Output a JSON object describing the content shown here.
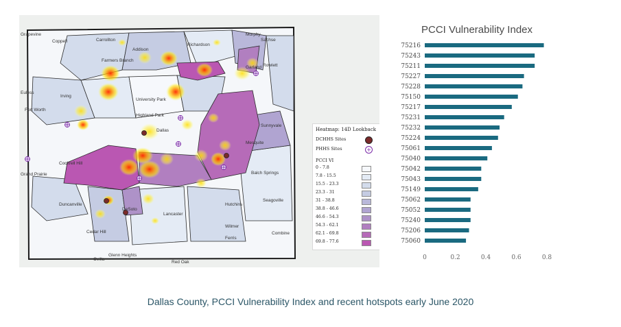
{
  "map": {
    "places": [
      "Grapevine",
      "Coppell",
      "Carrollton",
      "Addison",
      "Richardson",
      "Murphy",
      "Sachse",
      "Farmers Branch",
      "Rowlett",
      "Garland",
      "Euless",
      "Irving",
      "University Park",
      "Sunnyvale",
      "Fort Worth",
      "Highland Park",
      "Dallas",
      "Mesquite",
      "Cockrell Hill",
      "Balch Springs",
      "Grand Prairie",
      "Seagoville",
      "Duncanville",
      "Hutchins",
      "DeSoto",
      "Lancaster",
      "Wilmer",
      "Ferris",
      "Cedar Hill",
      "Glenn Heights",
      "Ovilla",
      "Red Oak",
      "Combine"
    ],
    "legend": {
      "title": "Heatmap: 14D Lookback",
      "site1": "DCHHS Sites",
      "site2": "PHHS Sites",
      "vi_title": "PCCI VI",
      "classes": [
        "0 - 7.8",
        "7.8 - 15.5",
        "15.5 - 23.3",
        "23.3 - 31",
        "31 - 38.8",
        "38.8 - 46.6",
        "46.6 - 54.3",
        "54.3 - 62.1",
        "62.1 - 69.8",
        "69.8 - 77.6"
      ],
      "class_colors": [
        "#f6f8fc",
        "#e4ebf5",
        "#d3dcec",
        "#c5cce3",
        "#b9b8da",
        "#b0a4d1",
        "#ae92c8",
        "#b17fc0",
        "#b66bb8",
        "#ba57b2"
      ],
      "site1_color": "#7a2a2a",
      "site2_color": "#7a2aa8"
    }
  },
  "chart_data": {
    "type": "bar",
    "orientation": "horizontal",
    "title": "PCCI Vulnerability Index",
    "categories": [
      "75216",
      "75243",
      "75211",
      "75227",
      "75228",
      "75150",
      "75217",
      "75231",
      "75232",
      "75224",
      "75061",
      "75040",
      "75042",
      "75043",
      "75149",
      "75062",
      "75052",
      "75240",
      "75206",
      "75060"
    ],
    "values": [
      0.78,
      0.72,
      0.72,
      0.65,
      0.64,
      0.61,
      0.57,
      0.52,
      0.49,
      0.48,
      0.44,
      0.41,
      0.37,
      0.37,
      0.35,
      0.3,
      0.3,
      0.3,
      0.29,
      0.27
    ],
    "xlim": [
      0,
      0.8
    ],
    "xticks": [
      "0",
      "0.2",
      "0.4",
      "0.6",
      "0.8"
    ],
    "bar_color": "#1a6a80"
  },
  "caption": "Dallas County, PCCI Vulnerability Index and recent hotspots early June 2020"
}
